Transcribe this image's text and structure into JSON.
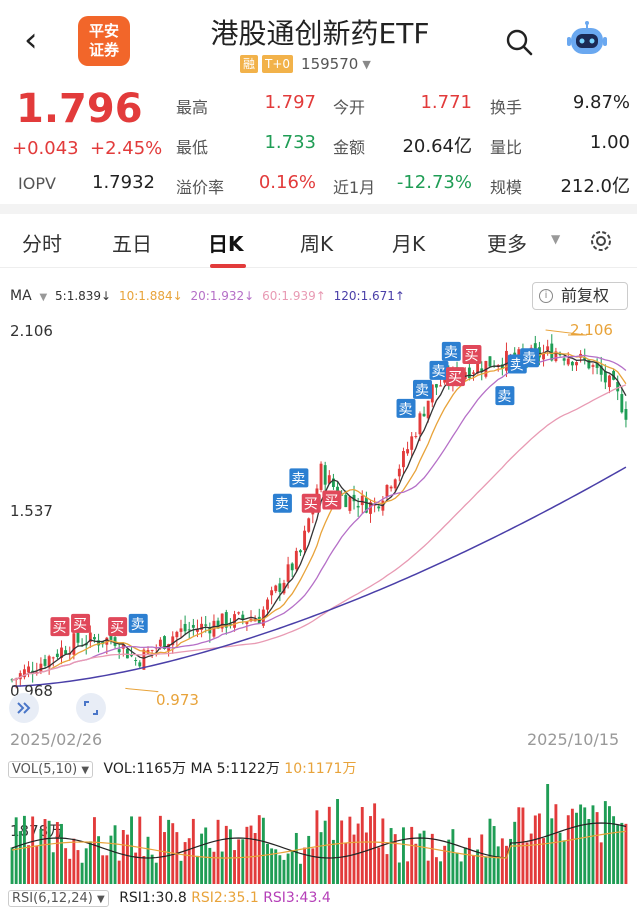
{
  "header": {
    "back_icon": "‹",
    "logo_text_1": "平安",
    "logo_text_2": "证券",
    "title": "港股通创新药ETF",
    "tags": [
      "融",
      "T+0"
    ],
    "code": "159570",
    "caret": "▼"
  },
  "quote": {
    "price": "1.796",
    "change": "+0.043",
    "change_pct": "+2.45%",
    "iopv_label": "IOPV",
    "iopv_value": "1.7932",
    "fields": [
      {
        "label": "最高",
        "value": "1.797",
        "color": "red"
      },
      {
        "label": "今开",
        "value": "1.771",
        "color": "red"
      },
      {
        "label": "换手",
        "value": "9.87%",
        "color": "dark"
      },
      {
        "label": "最低",
        "value": "1.733",
        "color": "green"
      },
      {
        "label": "金额",
        "value": "20.64亿",
        "color": "dark"
      },
      {
        "label": "量比",
        "value": "1.00",
        "color": "dark"
      },
      {
        "label": "溢价率",
        "value": "0.16%",
        "color": "red"
      },
      {
        "label": "近1月",
        "value": "-12.73%",
        "color": "green"
      },
      {
        "label": "规模",
        "value": "212.0亿",
        "color": "dark"
      }
    ]
  },
  "tabs": [
    {
      "label": "分时",
      "active": false
    },
    {
      "label": "五日",
      "active": false
    },
    {
      "label": "日K",
      "active": true
    },
    {
      "label": "周K",
      "active": false
    },
    {
      "label": "月K",
      "active": false
    },
    {
      "label": "更多",
      "active": false
    }
  ],
  "tabs_more_caret": "▼",
  "ma": {
    "label": "MA",
    "caret": "▼",
    "items": [
      {
        "text": "5:1.839↓",
        "color": "#333333"
      },
      {
        "text": "10:1.884↓",
        "color": "#e8a33a"
      },
      {
        "text": "20:1.932↓",
        "color": "#b56fc7"
      },
      {
        "text": "60:1.939↑",
        "color": "#e89ab3"
      },
      {
        "text": "120:1.671↑",
        "color": "#4a3fa8"
      }
    ]
  },
  "adjust_button": "前复权",
  "adjust_icon_glyph": "i",
  "kline_chart": {
    "axis_top": "2.106",
    "axis_mid": "1.537",
    "axis_bottom": "0.968",
    "high_label": "2.106",
    "low_label": "0.973",
    "date_start": "2025/02/26",
    "date_end": "2025/10/15",
    "buy_label": "买",
    "sell_label": "卖"
  },
  "volume": {
    "selector": "VOL(5,10)",
    "selector_caret": "▼",
    "vol": "VOL:1165万",
    "ma5": "MA 5:1122万",
    "ma10": "10:1171万",
    "axis": "1878万"
  },
  "rsi": {
    "selector": "RSI(6,12,24)",
    "selector_caret": "▼",
    "rsi1": "RSI1:30.8",
    "rsi2": "RSI2:35.1",
    "rsi3": "RSI3:43.4"
  },
  "colors": {
    "up": "#e23b3b",
    "down": "#1f9d55",
    "accent": "#f2662a"
  }
}
